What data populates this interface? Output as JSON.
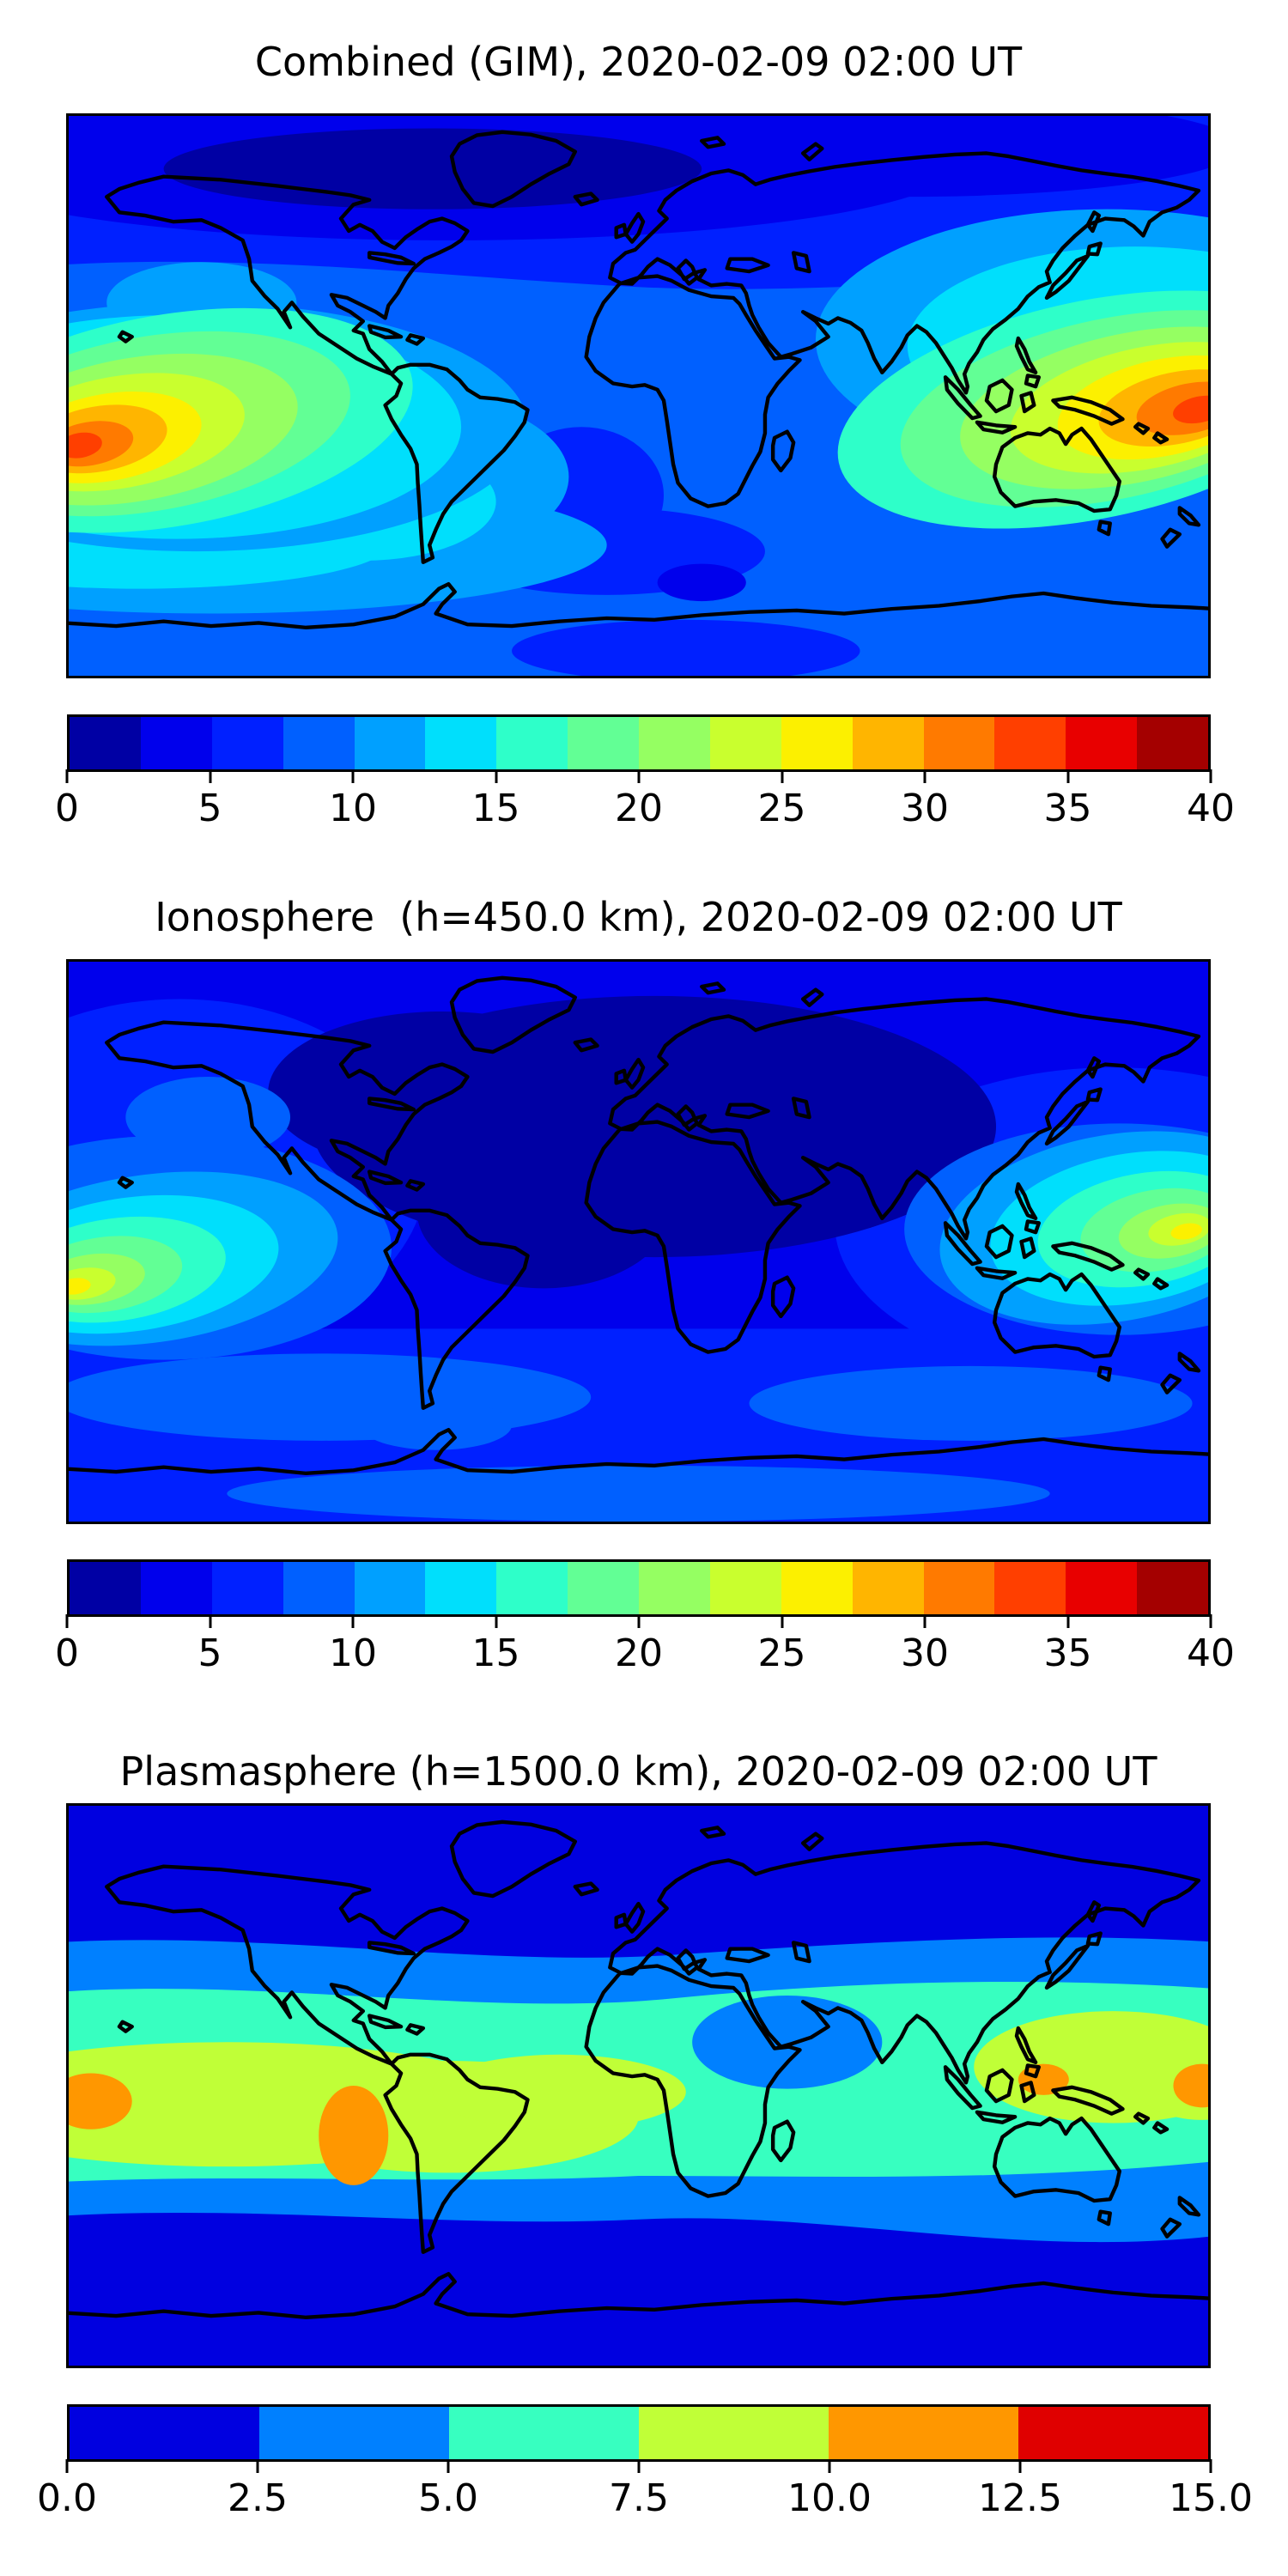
{
  "panels": [
    {
      "id": "combined-gim",
      "title": "Combined (GIM), 2020-02-09 02:00 UT",
      "colorbar": {
        "min": 0,
        "max": 40,
        "ticks": [
          "0",
          "5",
          "10",
          "15",
          "20",
          "25",
          "30",
          "35",
          "40"
        ],
        "segments": [
          "#0000A4",
          "#0000EC",
          "#0020FF",
          "#0060FF",
          "#00A0FF",
          "#00DFFC",
          "#2EFFC9",
          "#62FF95",
          "#95FF62",
          "#C9FF2E",
          "#FCF000",
          "#FFB500",
          "#FF7A00",
          "#FF3F00",
          "#E80000",
          "#A40000"
        ]
      }
    },
    {
      "id": "ionosphere",
      "title": "Ionosphere  (h=450.0 km), 2020-02-09 02:00 UT",
      "colorbar": {
        "min": 0,
        "max": 40,
        "ticks": [
          "0",
          "5",
          "10",
          "15",
          "20",
          "25",
          "30",
          "35",
          "40"
        ],
        "segments": [
          "#0000A4",
          "#0000EC",
          "#0020FF",
          "#0060FF",
          "#00A0FF",
          "#00DFFC",
          "#2EFFC9",
          "#62FF95",
          "#95FF62",
          "#C9FF2E",
          "#FCF000",
          "#FFB500",
          "#FF7A00",
          "#FF3F00",
          "#E80000",
          "#A40000"
        ]
      }
    },
    {
      "id": "plasmasphere",
      "title": "Plasmasphere (h=1500.0 km), 2020-02-09 02:00 UT",
      "colorbar": {
        "min": 0,
        "max": 15,
        "ticks": [
          "0.0",
          "2.5",
          "5.0",
          "7.5",
          "10.0",
          "12.5",
          "15.0"
        ],
        "segments": [
          "#0000E0",
          "#0080FF",
          "#37FFC0",
          "#C0FF37",
          "#FF9700",
          "#E00000"
        ]
      }
    }
  ],
  "chart_data": [
    {
      "type": "heatmap",
      "title": "Combined (GIM), 2020-02-09 02:00 UT",
      "projection": "equirectangular",
      "lon_range": [
        -180,
        180
      ],
      "lat_range": [
        -90,
        90
      ],
      "value_range": [
        0,
        40
      ],
      "contour_interval": 2.5,
      "colorbar_ticks": [
        0,
        5,
        10,
        15,
        20,
        25,
        30,
        35,
        40
      ],
      "colormap": "jet, 16 discrete levels",
      "grid": false,
      "maxima": [
        {
          "region": "central Pacific equatorial anomaly",
          "lon": -165,
          "lat": -14,
          "value_est": 34
        },
        {
          "region": "west Pacific / Melanesia anomaly",
          "lon": 177,
          "lat": -10,
          "value_est": 34
        }
      ],
      "minima": [
        {
          "region": "north polar Canada / Greenland",
          "value_est": 2
        },
        {
          "region": "south Indian Ocean ~55S",
          "value_est": 3
        }
      ],
      "background_est": 7.5
    },
    {
      "type": "heatmap",
      "title": "Ionosphere  (h=450.0 km), 2020-02-09 02:00 UT",
      "projection": "equirectangular",
      "lon_range": [
        -180,
        180
      ],
      "lat_range": [
        -90,
        90
      ],
      "value_range": [
        0,
        40
      ],
      "contour_interval": 2.5,
      "colorbar_ticks": [
        0,
        5,
        10,
        15,
        20,
        25,
        30,
        35,
        40
      ],
      "colormap": "jet, 16 discrete levels",
      "grid": false,
      "maxima": [
        {
          "region": "central Pacific equatorial anomaly",
          "lon": -172,
          "lat": -15,
          "value_est": 26
        },
        {
          "region": "west Pacific anomaly",
          "lon": 170,
          "lat": -8,
          "value_est": 26
        }
      ],
      "minima": [
        {
          "region": "Americas-Atlantic-Africa-Europe night sector",
          "value_est": 2
        }
      ],
      "background_est": 5
    },
    {
      "type": "heatmap",
      "title": "Plasmasphere (h=1500.0 km), 2020-02-09 02:00 UT",
      "projection": "equirectangular",
      "lon_range": [
        -180,
        180
      ],
      "lat_range": [
        -90,
        90
      ],
      "value_range": [
        0,
        15
      ],
      "contour_interval": 2.5,
      "colorbar_ticks": [
        0.0,
        2.5,
        5.0,
        7.5,
        10.0,
        12.5,
        15.0
      ],
      "colormap": "jet, 6 discrete levels",
      "grid": false,
      "structure": "broad equatorial band peaking near the geomagnetic equator",
      "maxima": [
        {
          "region": "left-edge Pacific",
          "lon": -172,
          "lat": -5,
          "value_est": 11
        },
        {
          "region": "west of Peru",
          "lon": -88,
          "lat": -17,
          "value_est": 11
        },
        {
          "region": "east of Philippines",
          "lon": 143,
          "lat": 2,
          "value_est": 11
        },
        {
          "region": "right-edge Pacific",
          "lon": 178,
          "lat": 0,
          "value_est": 11
        }
      ],
      "minima": [
        {
          "region": "polar caps north and south",
          "value_est": 1
        },
        {
          "region": "Arabia / Horn of Africa dip",
          "value_est": 4
        }
      ],
      "background_est": 1.5
    }
  ]
}
